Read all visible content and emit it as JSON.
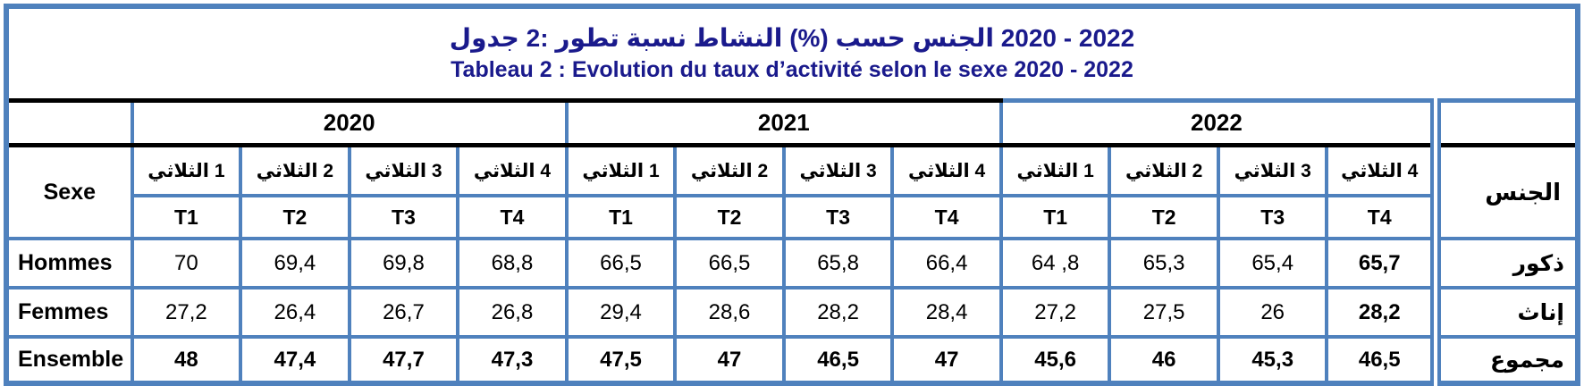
{
  "title": {
    "ar": "جدول‎ 2: ‎تطور ‎نسبة ‎النشاط‎ (%) ‎حسب ‎الجنس‎ 2020 - 2022",
    "fr": "Tableau 2 : Evolution du taux d’activité selon le sexe 2020 - 2022"
  },
  "header": {
    "sexe_label": "Sexe",
    "gender_label_ar": "الجنس",
    "years": [
      "2020",
      "2021",
      "2022"
    ],
    "quarters_ar": [
      "الثلاثي‎ 1",
      "الثلاثي‎ 2",
      "الثلاثي‎ 3",
      "الثلاثي‎ 4",
      "الثلاثي‎ 1",
      "الثلاثي‎ 2",
      "الثلاثي‎ 3",
      "الثلاثي‎ 4",
      "الثلاثي‎ 1",
      "الثلاثي‎ 2",
      "الثلاثي‎ 3",
      "الثلاثي‎ 4"
    ],
    "quarters_t": [
      "T1",
      "T2",
      "T3",
      "T4",
      "T1",
      "T2",
      "T3",
      "T4",
      "T1",
      "T2",
      "T3",
      "T4"
    ]
  },
  "rows": [
    {
      "label_fr": "Hommes",
      "label_ar": "ذكور",
      "values": [
        "70",
        "69,4",
        "69,8",
        "68,8",
        "66,5",
        "66,5",
        "65,8",
        "66,4",
        "64 ,8",
        "65,3",
        "65,4",
        "65,7"
      ]
    },
    {
      "label_fr": "Femmes",
      "label_ar": "إناث",
      "values": [
        "27,2",
        "26,4",
        "26,7",
        "26,8",
        "29,4",
        "28,6",
        "28,2",
        "28,4",
        "27,2",
        "27,5",
        "26",
        "28,2"
      ]
    },
    {
      "label_fr": "Ensemble",
      "label_ar": "مجموع",
      "values": [
        "48",
        "47,4",
        "47,7",
        "47,3",
        "47,5",
        "47",
        "46,5",
        "47",
        "45,6",
        "46",
        "45,3",
        "46,5"
      ]
    }
  ],
  "colors": {
    "border_blue": "#4f81bd",
    "title_navy": "#1a1a8c",
    "heavy_line_black": "#000000"
  },
  "chart_data": {
    "type": "table",
    "title": "Tableau 2 : Evolution du taux d’activité selon le sexe 2020 - 2022",
    "title_ar": "جدول 2: تطور نسبة النشاط (%) حسب الجنس 2020 - 2022",
    "unit": "%",
    "categories": [
      "2020-T1",
      "2020-T2",
      "2020-T3",
      "2020-T4",
      "2021-T1",
      "2021-T2",
      "2021-T3",
      "2021-T4",
      "2022-T1",
      "2022-T2",
      "2022-T3",
      "2022-T4"
    ],
    "series": [
      {
        "name": "Hommes",
        "name_ar": "ذكور",
        "values": [
          70,
          69.4,
          69.8,
          68.8,
          66.5,
          66.5,
          65.8,
          66.4,
          64.8,
          65.3,
          65.4,
          65.7
        ]
      },
      {
        "name": "Femmes",
        "name_ar": "إناث",
        "values": [
          27.2,
          26.4,
          26.7,
          26.8,
          29.4,
          28.6,
          28.2,
          28.4,
          27.2,
          27.5,
          26,
          28.2
        ]
      },
      {
        "name": "Ensemble",
        "name_ar": "مجموع",
        "values": [
          48,
          47.4,
          47.7,
          47.3,
          47.5,
          47,
          46.5,
          47,
          45.6,
          46,
          45.3,
          46.5
        ]
      }
    ]
  }
}
